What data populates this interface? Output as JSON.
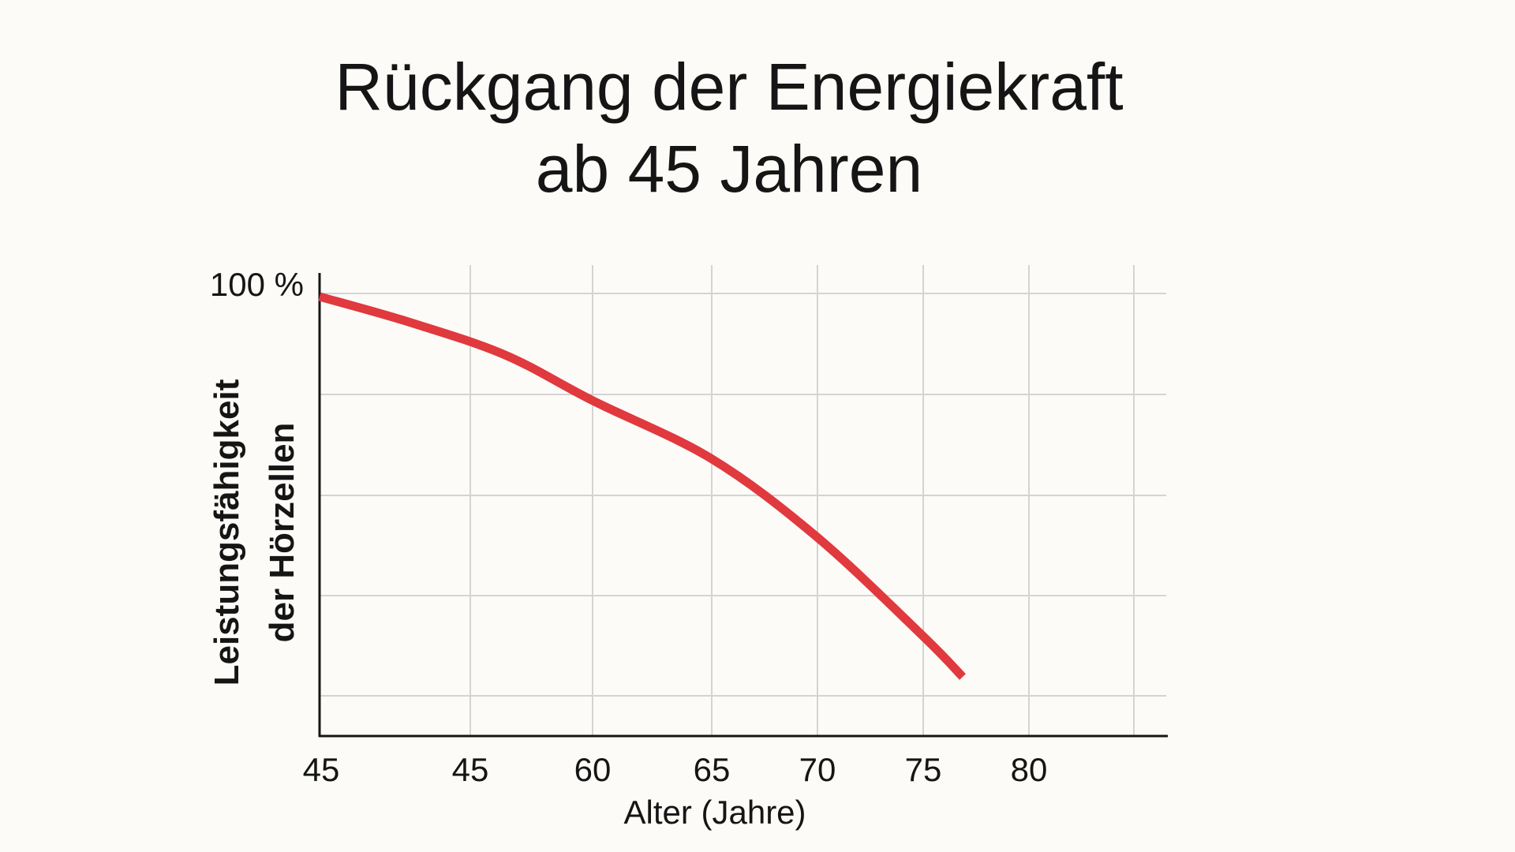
{
  "chart_data": {
    "type": "line",
    "title_lines": [
      "Rückgang der Energiekraft",
      "ab 45 Jahren"
    ],
    "xlabel": "Alter (Jahre)",
    "ylabel_lines": [
      "Leistungsfähigkeit",
      "der Hörzellen"
    ],
    "x_tick_labels": [
      "45",
      "45",
      "60",
      "65",
      "70",
      "75",
      "80"
    ],
    "y_tick_labels": [
      "100 %"
    ],
    "grid": true,
    "series": [
      {
        "x": [
          45,
          50,
          55,
          60,
          65,
          70,
          75,
          77
        ],
        "y": [
          100,
          95,
          88.5,
          79.5,
          68,
          52.5,
          33,
          25
        ],
        "color": "#e0393e"
      }
    ]
  }
}
